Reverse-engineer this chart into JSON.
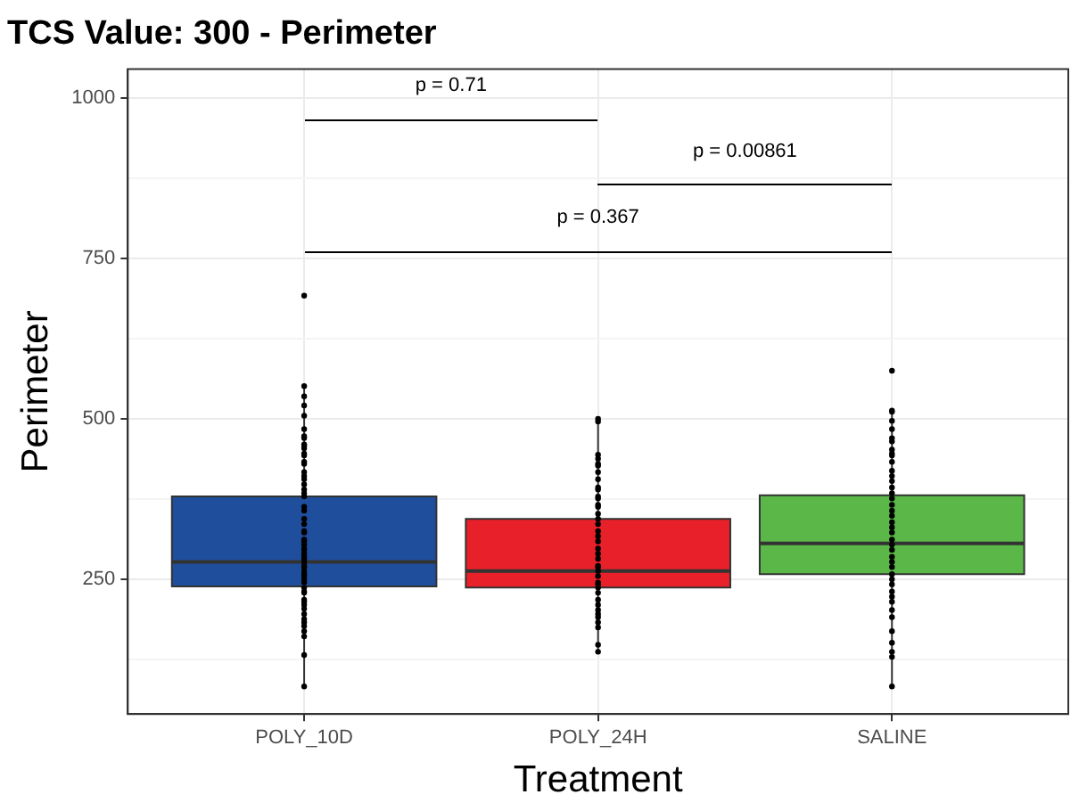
{
  "chart_data": {
    "type": "box",
    "title": "TCS Value: 300 - Perimeter",
    "xlabel": "Treatment",
    "ylabel": "Perimeter",
    "categories": [
      "POLY_10D",
      "POLY_24H",
      "SALINE"
    ],
    "ylim": [
      40,
      1045
    ],
    "yticks": [
      {
        "value": 125,
        "label": null
      },
      250,
      {
        "value": 375,
        "label": null
      },
      500,
      {
        "value": 625,
        "label": null
      },
      750,
      {
        "value": 875,
        "label": null
      },
      1000
    ],
    "grid": true,
    "legend": false,
    "annotations": [
      "p = 0.71",
      "p = 0.00861",
      "p = 0.367"
    ],
    "series": [
      {
        "type": "box",
        "colors": [
          "#1f4e9c",
          "#e8202a",
          "#5bb848"
        ],
        "boxes": [
          {
            "low": 83,
            "q1": 239,
            "median": 277,
            "q3": 379,
            "high": 551
          },
          {
            "low": 137,
            "q1": 237,
            "median": 263,
            "q3": 344,
            "high": 496
          },
          {
            "low": 83,
            "q1": 258,
            "median": 306,
            "q3": 381,
            "high": 513
          }
        ]
      },
      {
        "type": "scatter",
        "color": "#000000",
        "marker": "circle",
        "x": [
          "POLY_10D",
          "POLY_10D",
          "POLY_10D",
          "POLY_10D",
          "POLY_10D",
          "POLY_10D",
          "POLY_10D",
          "POLY_10D",
          "POLY_10D",
          "POLY_10D",
          "POLY_10D",
          "POLY_10D",
          "POLY_10D",
          "POLY_10D",
          "POLY_10D",
          "POLY_10D",
          "POLY_10D",
          "POLY_10D",
          "POLY_10D",
          "POLY_10D",
          "POLY_10D",
          "POLY_10D",
          "POLY_10D",
          "POLY_10D",
          "POLY_10D",
          "POLY_10D",
          "POLY_10D",
          "POLY_10D",
          "POLY_10D",
          "POLY_10D",
          "POLY_10D",
          "POLY_10D",
          "POLY_10D",
          "POLY_10D",
          "POLY_10D",
          "POLY_10D",
          "POLY_10D",
          "POLY_10D",
          "POLY_10D",
          "POLY_10D",
          "POLY_10D",
          "POLY_10D",
          "POLY_10D",
          "POLY_10D",
          "POLY_10D",
          "POLY_10D",
          "POLY_10D",
          "POLY_10D",
          "POLY_10D",
          "POLY_10D",
          "POLY_10D",
          "POLY_10D",
          "POLY_10D",
          "POLY_10D",
          "POLY_10D",
          "POLY_10D",
          "POLY_10D",
          "POLY_10D",
          "POLY_10D",
          "POLY_24H",
          "POLY_24H",
          "POLY_24H",
          "POLY_24H",
          "POLY_24H",
          "POLY_24H",
          "POLY_24H",
          "POLY_24H",
          "POLY_24H",
          "POLY_24H",
          "POLY_24H",
          "POLY_24H",
          "POLY_24H",
          "POLY_24H",
          "POLY_24H",
          "POLY_24H",
          "POLY_24H",
          "POLY_24H",
          "POLY_24H",
          "POLY_24H",
          "POLY_24H",
          "POLY_24H",
          "POLY_24H",
          "POLY_24H",
          "POLY_24H",
          "POLY_24H",
          "POLY_24H",
          "POLY_24H",
          "POLY_24H",
          "POLY_24H",
          "POLY_24H",
          "POLY_24H",
          "POLY_24H",
          "POLY_24H",
          "POLY_24H",
          "POLY_24H",
          "POLY_24H",
          "POLY_24H",
          "POLY_24H",
          "POLY_24H",
          "SALINE",
          "SALINE",
          "SALINE",
          "SALINE",
          "SALINE",
          "SALINE",
          "SALINE",
          "SALINE",
          "SALINE",
          "SALINE",
          "SALINE",
          "SALINE",
          "SALINE",
          "SALINE",
          "SALINE",
          "SALINE",
          "SALINE",
          "SALINE",
          "SALINE",
          "SALINE",
          "SALINE",
          "SALINE",
          "SALINE",
          "SALINE",
          "SALINE",
          "SALINE",
          "SALINE",
          "SALINE",
          "SALINE",
          "SALINE",
          "SALINE",
          "SALINE",
          "SALINE",
          "SALINE",
          "SALINE",
          "SALINE",
          "SALINE",
          "SALINE",
          "SALINE",
          "SALINE",
          "SALINE",
          "SALINE"
        ],
        "values": [
          692,
          551,
          535,
          521,
          505,
          484,
          473,
          470,
          460,
          458,
          454,
          446,
          443,
          433,
          430,
          417,
          411,
          406,
          398,
          390,
          384,
          379,
          363,
          357,
          344,
          336,
          325,
          323,
          312,
          309,
          304,
          298,
          296,
          290,
          285,
          282,
          277,
          271,
          269,
          263,
          258,
          255,
          250,
          245,
          237,
          231,
          229,
          218,
          215,
          210,
          204,
          196,
          188,
          183,
          177,
          169,
          161,
          132,
          83,
          500,
          496,
          444,
          438,
          430,
          427,
          417,
          406,
          393,
          390,
          379,
          376,
          366,
          363,
          352,
          344,
          336,
          325,
          317,
          309,
          298,
          290,
          282,
          271,
          269,
          263,
          255,
          245,
          242,
          237,
          229,
          218,
          210,
          202,
          196,
          191,
          183,
          175,
          148,
          137,
          575,
          513,
          511,
          497,
          484,
          470,
          465,
          452,
          446,
          443,
          433,
          419,
          411,
          403,
          393,
          384,
          376,
          366,
          357,
          349,
          339,
          331,
          323,
          312,
          304,
          296,
          285,
          277,
          269,
          258,
          250,
          242,
          231,
          223,
          215,
          202,
          191,
          169,
          151,
          137,
          129,
          83
        ]
      }
    ]
  }
}
